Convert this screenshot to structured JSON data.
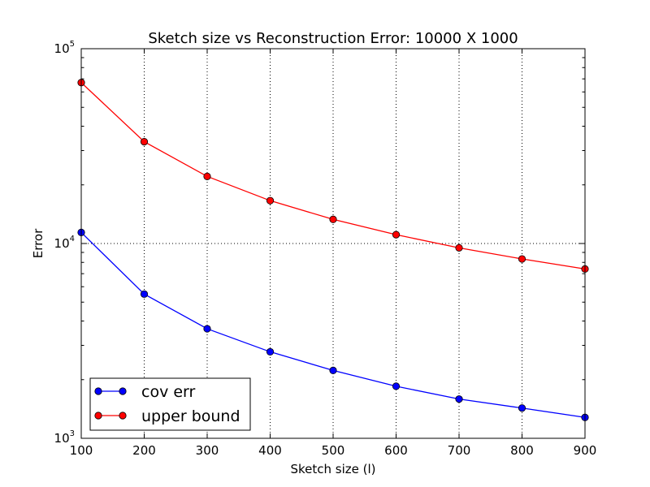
{
  "chart_data": {
    "type": "line",
    "title": "Sketch size vs Reconstruction Error: 10000 X 1000",
    "xlabel": "Sketch size (l)",
    "ylabel": "Error",
    "yscale": "log",
    "xlim": [
      100,
      900
    ],
    "ylim": [
      1000,
      100000
    ],
    "grid": true,
    "legend_position": "lower-left",
    "x": [
      100,
      200,
      300,
      400,
      500,
      600,
      700,
      800,
      900
    ],
    "x_ticks": [
      "100",
      "200",
      "300",
      "400",
      "500",
      "600",
      "700",
      "800",
      "900"
    ],
    "y_ticks": [
      {
        "value": 1000,
        "base": "10",
        "exp": "3"
      },
      {
        "value": 10000,
        "base": "10",
        "exp": "4"
      },
      {
        "value": 100000,
        "base": "10",
        "exp": "5"
      }
    ],
    "series": [
      {
        "name": "cov err",
        "color": "#0000ff",
        "values": [
          11400,
          5500,
          3650,
          2780,
          2230,
          1850,
          1590,
          1430,
          1280
        ]
      },
      {
        "name": "upper bound",
        "color": "#ff0000",
        "values": [
          67000,
          33300,
          22100,
          16600,
          13300,
          11100,
          9500,
          8330,
          7400
        ]
      }
    ]
  }
}
